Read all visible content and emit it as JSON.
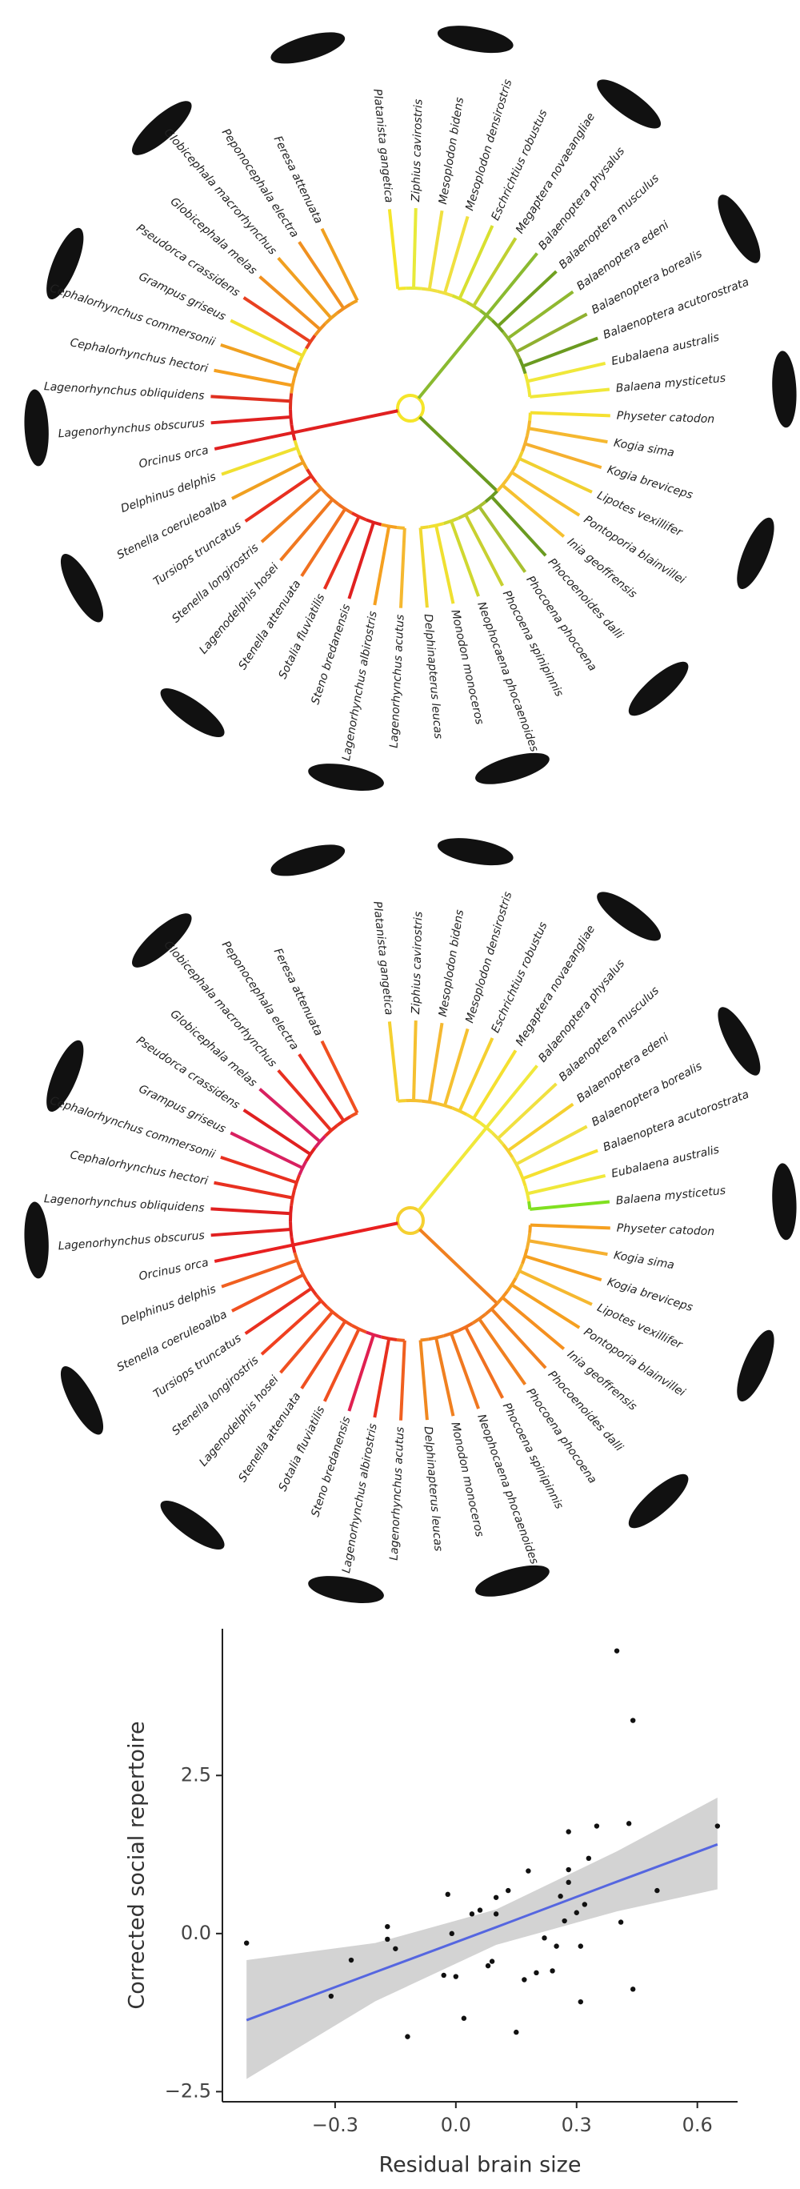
{
  "trees": [
    {
      "species": [
        "Platanista gangetica",
        "Ziphius cavirostris",
        "Mesoplodon bidens",
        "Mesoplodon densirostris",
        "Eschrichtius robustus",
        "Megaptera novaeangliae",
        "Balaenoptera physalus",
        "Balaenoptera musculus",
        "Balaenoptera edeni",
        "Balaenoptera borealis",
        "Balaenoptera acutorostrata",
        "Eubalaena australis",
        "Balaena mysticetus",
        "Physeter catodon",
        "Kogia sima",
        "Kogia breviceps",
        "Lipotes vexillifer",
        "Pontoporia blainvillei",
        "Inia geoffrensis",
        "Phocoenoides dalli",
        "Phocoena phocoena",
        "Phocoena spinipinnis",
        "Neophocaena phocaenoides",
        "Monodon monoceros",
        "Delphinapterus leucas",
        "Lagenorhynchus acutus",
        "Lagenorhynchus albirostris",
        "Steno bredanensis",
        "Sotalia fluviatilis",
        "Stenella attenuata",
        "Lagenodelphis hosei",
        "Stenella longirostris",
        "Tursiops truncatus",
        "Stenella coeruleoalba",
        "Delphinus delphis",
        "Orcinus orca",
        "Lagenorhynchus obscurus",
        "Lagenorhynchus obliquidens",
        "Cephalorhynchus hectori",
        "Cephalorhynchus commersonii",
        "Grampus griseus",
        "Pseudorca crassidens",
        "Globicephala melas",
        "Globicephala macrorhynchus",
        "Peponocephala electra",
        "Feresa attenuata"
      ],
      "colors": [
        "#f5e52a",
        "#e8ea3a",
        "#f0e040",
        "#f0e040",
        "#d8e030",
        "#c0d030",
        "#8aba30",
        "#70a020",
        "#90b830",
        "#90b030",
        "#6a9a20",
        "#f0e83a",
        "#f0e83a",
        "#f5e030",
        "#f5b830",
        "#f5b030",
        "#f0d030",
        "#f5c030",
        "#f5c030",
        "#6a9a20",
        "#a8c030",
        "#c8d030",
        "#d0d830",
        "#f0e030",
        "#f0d830",
        "#f5b830",
        "#f5a020",
        "#e02020",
        "#e83020",
        "#f07020",
        "#f07820",
        "#f08020",
        "#e83020",
        "#f0a020",
        "#f0e030",
        "#e02020",
        "#e02020",
        "#e03020",
        "#f5a020",
        "#f0a020",
        "#f0e030",
        "#e84020",
        "#f09020",
        "#f0a020",
        "#f09020",
        "#f0a020"
      ]
    },
    {
      "species": [
        "Platanista gangetica",
        "Ziphius cavirostris",
        "Mesoplodon bidens",
        "Mesoplodon densirostris",
        "Eschrichtius robustus",
        "Megaptera novaeangliae",
        "Balaenoptera physalus",
        "Balaenoptera musculus",
        "Balaenoptera edeni",
        "Balaenoptera borealis",
        "Balaenoptera acutorostrata",
        "Eubalaena australis",
        "Balaena mysticetus",
        "Physeter catodon",
        "Kogia sima",
        "Kogia breviceps",
        "Lipotes vexillifer",
        "Pontoporia blainvillei",
        "Inia geoffrensis",
        "Phocoenoides dalli",
        "Phocoena phocoena",
        "Phocoena spinipinnis",
        "Neophocaena phocaenoides",
        "Monodon monoceros",
        "Delphinapterus leucas",
        "Lagenorhynchus acutus",
        "Lagenorhynchus albirostris",
        "Steno bredanensis",
        "Sotalia fluviatilis",
        "Stenella attenuata",
        "Lagenodelphis hosei",
        "Stenella longirostris",
        "Tursiops truncatus",
        "Stenella coeruleoalba",
        "Delphinus delphis",
        "Orcinus orca",
        "Lagenorhynchus obscurus",
        "Lagenorhynchus obliquidens",
        "Cephalorhynchus hectori",
        "Cephalorhynchus commersonii",
        "Grampus griseus",
        "Pseudorca crassidens",
        "Globicephala melas",
        "Globicephala macrorhynchus",
        "Peponocephala electra",
        "Feresa attenuata"
      ],
      "colors": [
        "#f5d030",
        "#f5c030",
        "#f5b830",
        "#f5c030",
        "#f5d030",
        "#f5e030",
        "#f0e83a",
        "#f0e040",
        "#f5d030",
        "#f0e040",
        "#f5e030",
        "#f0e83a",
        "#80e020",
        "#f5a020",
        "#f5b030",
        "#f5a020",
        "#f5b830",
        "#f5a020",
        "#f59020",
        "#f08020",
        "#f08020",
        "#f07020",
        "#f07820",
        "#f08020",
        "#f08820",
        "#f06020",
        "#e83020",
        "#e02050",
        "#f05020",
        "#f05020",
        "#f05020",
        "#f04020",
        "#e83020",
        "#f05020",
        "#f06020",
        "#e82020",
        "#e02020",
        "#e02020",
        "#e83020",
        "#e83020",
        "#d82060",
        "#e02020",
        "#d82060",
        "#e83020",
        "#e83020",
        "#f05020"
      ]
    }
  ],
  "chart_data": {
    "type": "scatter",
    "x_label": "Residual brain size",
    "y_label": "Corrected social repertoire",
    "x": [
      -0.52,
      -0.31,
      -0.26,
      -0.17,
      -0.17,
      -0.15,
      -0.12,
      -0.03,
      -0.02,
      -0.01,
      0.0,
      0.02,
      0.04,
      0.06,
      0.08,
      0.09,
      0.1,
      0.1,
      0.13,
      0.15,
      0.17,
      0.18,
      0.2,
      0.22,
      0.24,
      0.25,
      0.26,
      0.27,
      0.28,
      0.28,
      0.28,
      0.3,
      0.31,
      0.31,
      0.32,
      0.33,
      0.35,
      0.4,
      0.41,
      0.43,
      0.44,
      0.44,
      0.5,
      0.65
    ],
    "y": [
      -0.15,
      -0.99,
      -0.42,
      0.11,
      -0.09,
      -0.24,
      -1.63,
      -0.66,
      0.62,
      0.0,
      -0.68,
      -1.34,
      0.31,
      0.37,
      -0.51,
      -0.44,
      0.57,
      0.31,
      0.68,
      -1.56,
      -0.73,
      0.99,
      -0.62,
      -0.07,
      -0.59,
      -0.2,
      0.59,
      0.2,
      0.81,
      1.01,
      1.61,
      0.33,
      -0.2,
      -1.08,
      0.46,
      1.19,
      1.7,
      4.47,
      0.18,
      1.74,
      3.37,
      -0.88,
      0.68,
      1.7
    ],
    "point_color": "#111111",
    "fit": {
      "x": [
        -0.52,
        -0.2,
        0.1,
        0.4,
        0.65
      ],
      "y": [
        -1.37,
        -0.61,
        0.1,
        0.82,
        1.41
      ],
      "lower": [
        -2.3,
        -1.07,
        -0.18,
        0.35,
        0.7
      ],
      "upper": [
        -0.42,
        -0.15,
        0.38,
        1.3,
        2.15
      ],
      "color": "#5566e0",
      "band_color": "#d3d3d3"
    },
    "xlim": [
      -0.58,
      0.7
    ],
    "ylim": [
      -2.66,
      4.82
    ],
    "xticks": [
      {
        "value": -0.3,
        "label": "−0.3"
      },
      {
        "value": 0,
        "label": "0.0"
      },
      0.3,
      0.6
    ],
    "yticks": [
      {
        "value": -2.5,
        "label": "−2.5"
      },
      {
        "value": 0,
        "label": "0.0"
      },
      2.5
    ]
  }
}
